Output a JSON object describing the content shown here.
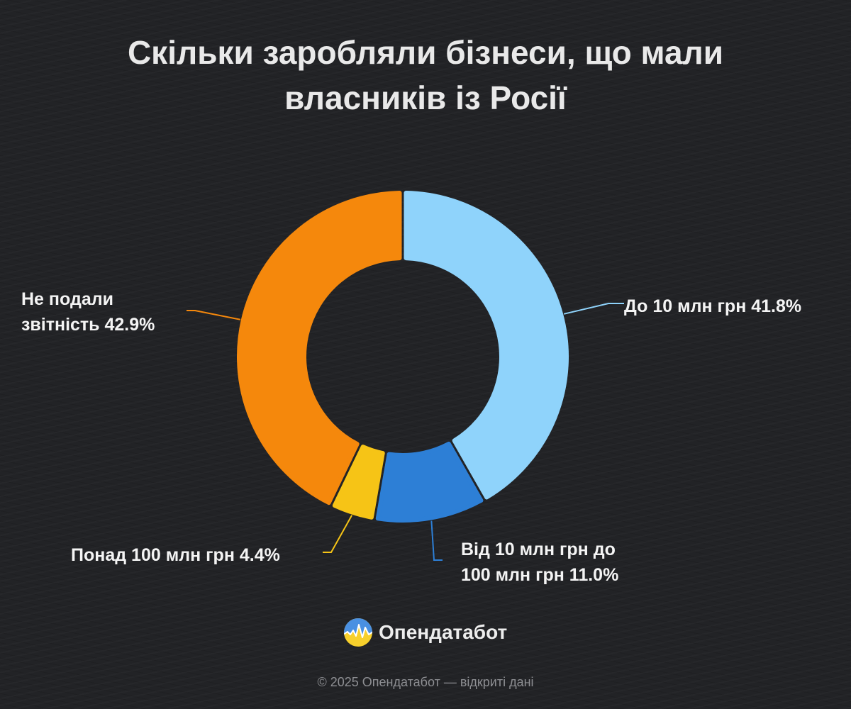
{
  "title": "Скільки заробляли бізнеси, що мали власників із Росії",
  "chart_data": {
    "type": "pie",
    "title": "Скільки заробляли бізнеси, що мали власників із Росії",
    "donut": true,
    "labels": [
      "До 10 млн грн",
      "Від 10 млн грн до 100 млн грн",
      "Понад 100 млн грн",
      "Не подали звітність"
    ],
    "values": [
      41.8,
      11.0,
      4.4,
      42.9
    ],
    "unit": "%",
    "colors": [
      "#8fd3fb",
      "#2d7fd6",
      "#f6c416",
      "#f5880c"
    ],
    "data_labels": [
      "До 10 млн грн 41.8%",
      "Від 10 млн грн до 100 млн грн 11.0%",
      "Понад 100 млн грн 4.4%",
      "Не подали звітність 42.9%"
    ]
  },
  "labels_display": {
    "light_line1": "До 10 млн грн 41.8%",
    "blue_line1": "Від 10 млн грн до",
    "blue_line2": "100 млн грн 11.0%",
    "yellow_line1": "Понад 100 млн грн 4.4%",
    "orange_line1": "Не подали",
    "orange_line2": "звітність 42.9%"
  },
  "brand": {
    "name": "Опендатабот",
    "icon": "opendatabot-logo-icon",
    "logo_colors": [
      "#4a90e2",
      "#f7d02c"
    ]
  },
  "footer": {
    "copyright": "© 2025 Опендатабот — відкриті дані"
  },
  "background_color": "#222326"
}
